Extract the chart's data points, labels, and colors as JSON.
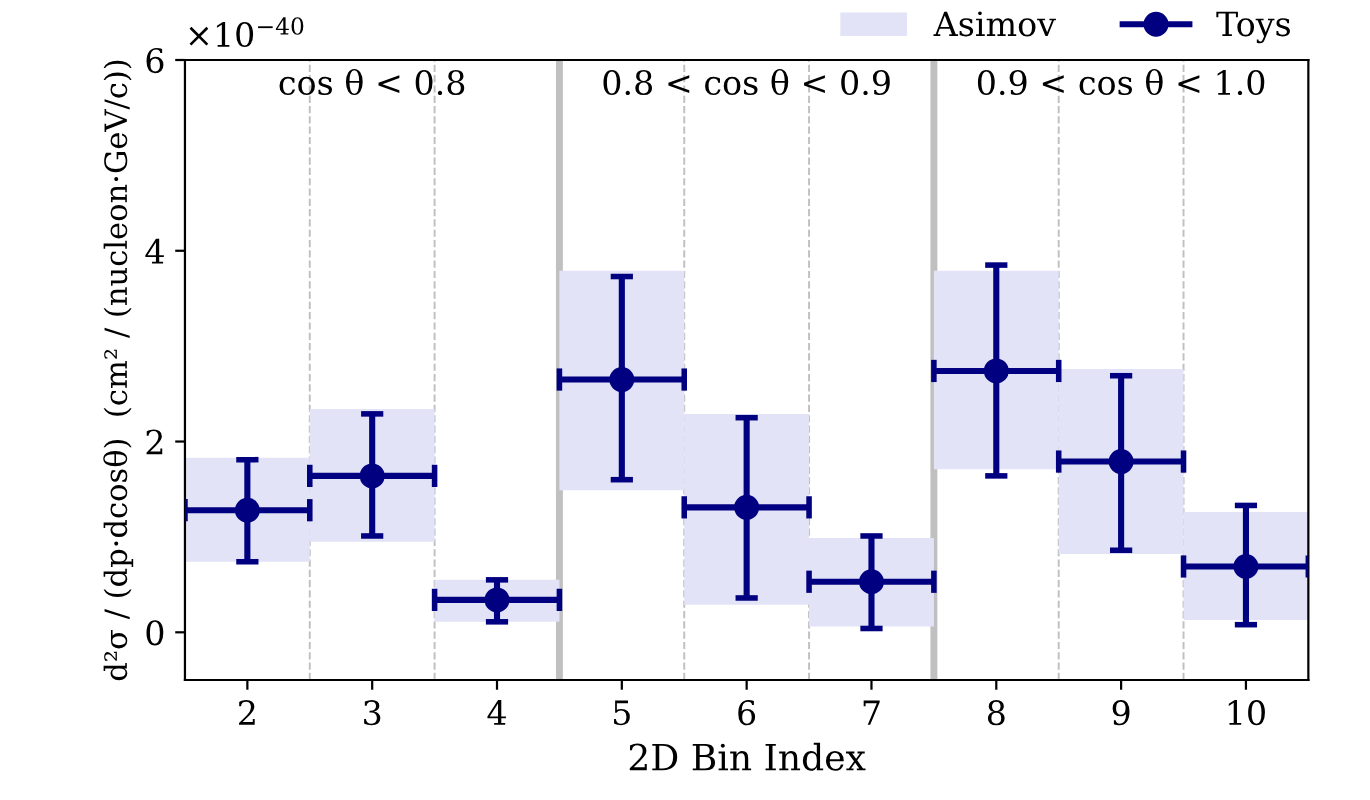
{
  "chart_data": {
    "type": "bar",
    "xlabel": "2D Bin Index",
    "ylabel": "d²σ / (dp·dcosθ)  (cm² / (nucleon·GeV/c))",
    "x": [
      2,
      3,
      4,
      5,
      6,
      7,
      8,
      9,
      10
    ],
    "series": [
      {
        "name": "Asimov",
        "color": "#e2e3f6",
        "base": [
          0.74,
          0.95,
          0.11,
          1.49,
          0.29,
          0.06,
          1.71,
          0.82,
          0.13
        ],
        "values": [
          1.09,
          1.39,
          0.44,
          2.3,
          2.0,
          0.93,
          2.08,
          1.94,
          1.13
        ]
      },
      {
        "name": "Toys",
        "type": "scatter",
        "color": "#000080",
        "values": [
          1.28,
          1.64,
          0.34,
          2.65,
          1.31,
          0.53,
          2.74,
          1.79,
          0.69
        ],
        "errors": [
          [
            0.74,
            1.81
          ],
          [
            1.01,
            2.29
          ],
          [
            0.11,
            0.55
          ],
          [
            1.6,
            3.73
          ],
          [
            0.36,
            2.25
          ],
          [
            0.04,
            1.01
          ],
          [
            1.64,
            3.85
          ],
          [
            0.86,
            2.69
          ],
          [
            0.08,
            1.33
          ]
        ],
        "xerrors": [
          0.5,
          0.5,
          0.5,
          0.5,
          0.5,
          0.5,
          0.5,
          0.5,
          0.5
        ]
      }
    ],
    "xlim": [
      1.5,
      10.5
    ],
    "xticks": [
      2,
      3,
      4,
      5,
      6,
      7,
      8,
      9,
      10
    ],
    "ylim": [
      -0.5,
      6
    ],
    "yticks": [
      0,
      2,
      4,
      6
    ],
    "ref_lines": [
      {
        "axis": "x",
        "value": 2.5,
        "color": "#c0c0c0",
        "line_style": "dashed"
      },
      {
        "axis": "x",
        "value": 3.5,
        "color": "#c0c0c0",
        "line_style": "dashed"
      },
      {
        "axis": "x",
        "value": 4.5,
        "color": "#c0c0c0",
        "line_style": "solid"
      },
      {
        "axis": "x",
        "value": 5.5,
        "color": "#c0c0c0",
        "line_style": "dashed"
      },
      {
        "axis": "x",
        "value": 6.5,
        "color": "#c0c0c0",
        "line_style": "dashed"
      },
      {
        "axis": "x",
        "value": 7.5,
        "color": "#c0c0c0",
        "line_style": "solid"
      },
      {
        "axis": "x",
        "value": 8.5,
        "color": "#c0c0c0",
        "line_style": "dashed"
      },
      {
        "axis": "x",
        "value": 9.5,
        "color": "#c0c0c0",
        "line_style": "dashed"
      }
    ],
    "annotations": [
      "×10$^{−40}$",
      "cos θ < 0.8",
      "0.8 < cos θ < 0.9",
      "0.9 < cos θ < 1.0"
    ],
    "legend": "top right",
    "marker": "circle",
    "grid": false
  }
}
